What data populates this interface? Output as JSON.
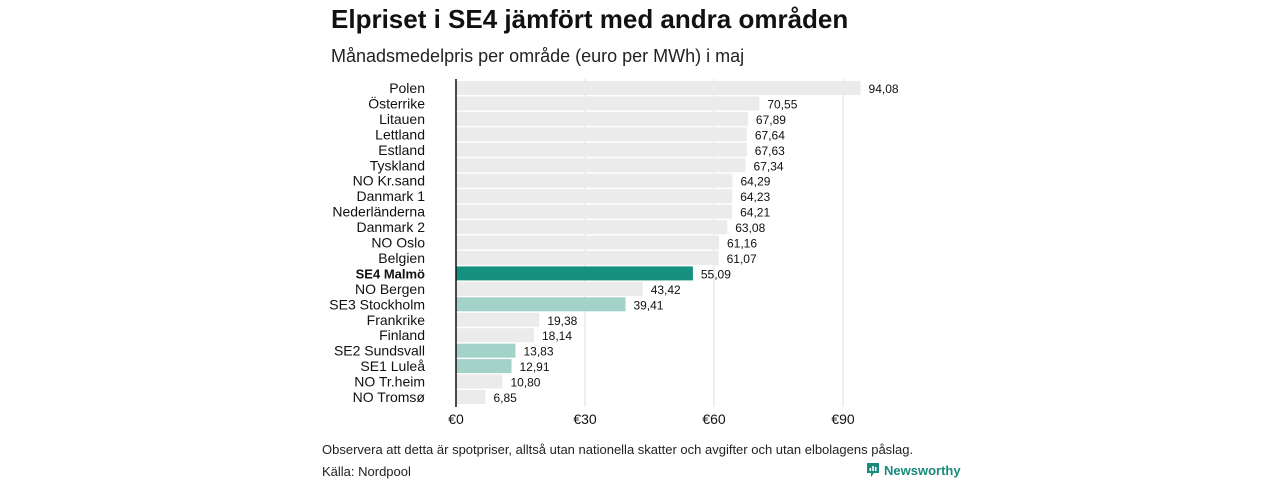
{
  "chart_data": {
    "type": "bar",
    "orientation": "horizontal",
    "title": "Elpriset i SE4 jämfört med andra områden",
    "subtitle": "Månadsmedelpris per område (euro per MWh) i maj",
    "categories": [
      "Polen",
      "Österrike",
      "Litauen",
      "Lettland",
      "Estland",
      "Tyskland",
      "NO Kr.sand",
      "Danmark  1",
      "Nederländerna",
      "Danmark  2",
      "NO Oslo",
      "Belgien",
      "SE4 Malmö",
      "NO Bergen",
      "SE3  Stockholm",
      "Frankrike",
      "Finland",
      "SE2  Sundsvall",
      "SE1  Luleå",
      "NO Tr.heim",
      "NO Tromsø"
    ],
    "values": [
      94.08,
      70.55,
      67.89,
      67.64,
      67.63,
      67.34,
      64.29,
      64.23,
      64.21,
      63.08,
      61.16,
      61.07,
      55.09,
      43.42,
      39.41,
      19.38,
      18.14,
      13.83,
      12.91,
      10.8,
      6.85
    ],
    "value_labels": [
      "94,08",
      "70,55",
      "67,89",
      "67,64",
      "67,63",
      "67,34",
      "64,29",
      "64,23",
      "64,21",
      "63,08",
      "61,16",
      "61,07",
      "55,09",
      "43,42",
      "39,41",
      "19,38",
      "18,14",
      "13,83",
      "12,91",
      "10,80",
      "6,85"
    ],
    "highlight": {
      "SE4 Malmö": "primary",
      "SE3  Stockholm": "secondary",
      "SE2  Sundsvall": "secondary",
      "SE1  Luleå": "secondary"
    },
    "xlim": [
      0,
      100
    ],
    "x_ticks": [
      0,
      30,
      60,
      90
    ],
    "x_tick_labels": [
      "€0",
      "€30",
      "€60",
      "€90"
    ],
    "grid": true,
    "colors": {
      "default": "#ebebeb",
      "primary": "#17917f",
      "secondary": "#a3d2c8",
      "grid": "#dddddd",
      "axis": "#111111"
    }
  },
  "footer": {
    "note": "Observera att detta är spotpriser, alltså utan nationella skatter och avgifter och utan elbolagens påslag.",
    "source": "Källa: Nordpool",
    "brand": "Newsworthy",
    "brand_icon": "newsworthy-logo-icon"
  }
}
